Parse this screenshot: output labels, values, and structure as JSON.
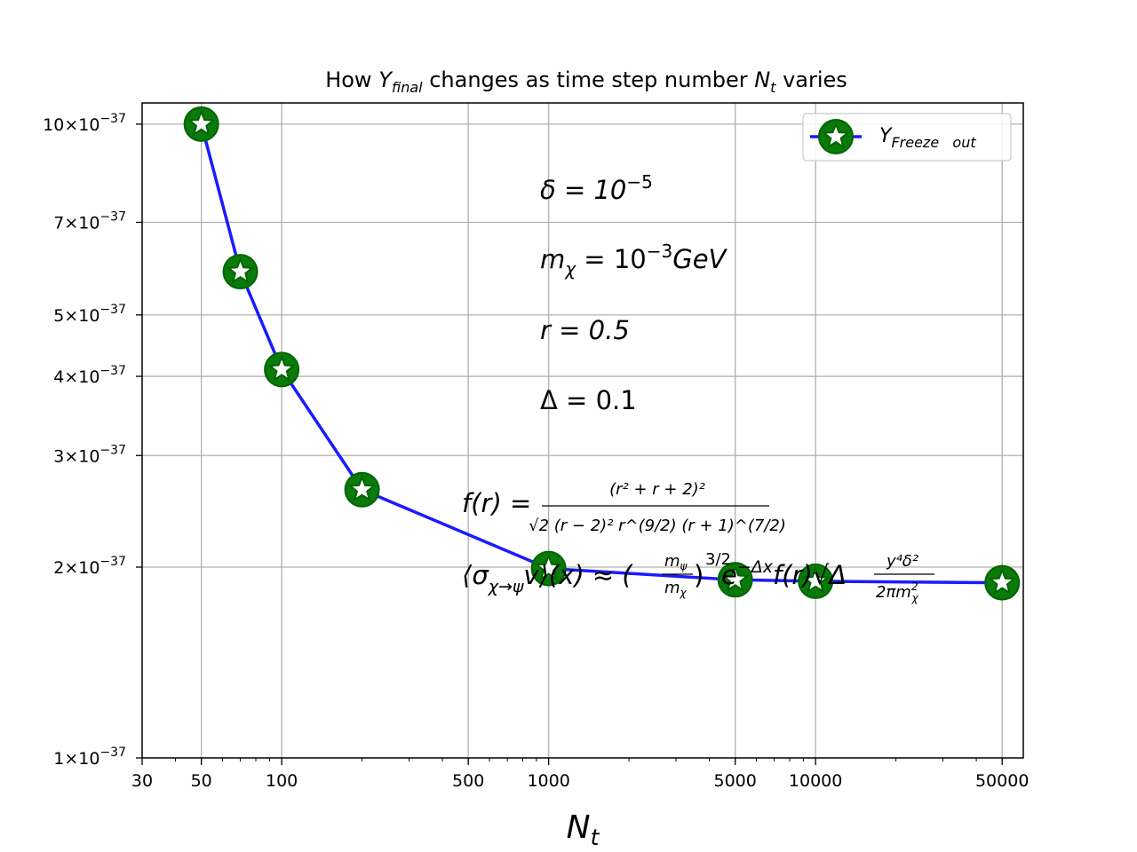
{
  "chart_data": {
    "type": "line",
    "title": {
      "prefix": "How ",
      "var": "Y",
      "var_sub": "final",
      "middle": " changes as time step number ",
      "var2": "N",
      "var2_sub": "t",
      "suffix": " varies"
    },
    "xlabel": {
      "main": "N",
      "sub": "t"
    },
    "ylabel": "",
    "x_scale": "log",
    "y_scale": "log",
    "xlim": [
      30,
      60000
    ],
    "ylim": [
      1e-37,
      1.08e-36
    ],
    "x_ticks": [
      {
        "value": 30,
        "label": "30"
      },
      {
        "value": 50,
        "label": "50"
      },
      {
        "value": 100,
        "label": "100"
      },
      {
        "value": 500,
        "label": "500"
      },
      {
        "value": 1000,
        "label": "1000"
      },
      {
        "value": 5000,
        "label": "5000"
      },
      {
        "value": 10000,
        "label": "10000"
      },
      {
        "value": 50000,
        "label": "50000"
      }
    ],
    "y_ticks": [
      {
        "value": 1e-37,
        "mant": "1",
        "exp": "−37"
      },
      {
        "value": 2e-37,
        "mant": "2",
        "exp": "−37"
      },
      {
        "value": 3e-37,
        "mant": "3",
        "exp": "−37"
      },
      {
        "value": 4e-37,
        "mant": "4",
        "exp": "−37"
      },
      {
        "value": 5e-37,
        "mant": "5",
        "exp": "−37"
      },
      {
        "value": 7e-37,
        "mant": "7",
        "exp": "−37"
      },
      {
        "value": 1e-36,
        "mant": "10",
        "exp": "−37"
      }
    ],
    "grid": true,
    "series": [
      {
        "name_main": "Y",
        "name_sub": "Freeze   out",
        "line_color": "#1a1aff",
        "marker": "star",
        "marker_face": "#ffffff",
        "marker_edge": "#006400",
        "marker_ring": "#0a7a0a",
        "x": [
          50,
          70,
          100,
          200,
          1000,
          5000,
          10000,
          50000
        ],
        "y": [
          1e-36,
          5.85e-37,
          4.1e-37,
          2.65e-37,
          1.99e-37,
          1.91e-37,
          1.9e-37,
          1.89e-37
        ]
      }
    ],
    "legend": {
      "position": "upper right"
    },
    "annotations": {
      "delta": "δ = 10",
      "delta_exp": "−5",
      "mass": "m",
      "mass_sub": "χ",
      "mass_mid": " = 10",
      "mass_exp": "−3",
      "mass_unit": "GeV",
      "r": "r = 0.5",
      "Delta": "Δ = 0.1",
      "f_lhs": "f(r) =",
      "f_num": "(r² + r + 2)²",
      "f_den": "√2 (r − 2)² r^(9/2) (r + 1)^(7/2)",
      "sigma_lhs": "⟨σ",
      "sigma_sub": "χ→ψ",
      "sigma_mid": "v⟩(x) ≈ (",
      "mpsi": "m",
      "mpsi_sub": "ψ",
      "mchi": "m",
      "mchi_sub": "χ",
      "sigma_pow": "3/2",
      "sigma_exp_part": "e",
      "sigma_exp": "−Δx",
      "sigma_tail": "f(r)√Δ",
      "frac2_num": "y⁴δ²",
      "frac2_den": "2πm",
      "frac2_den_sub": "χ",
      "frac2_den_sup": "2"
    }
  }
}
